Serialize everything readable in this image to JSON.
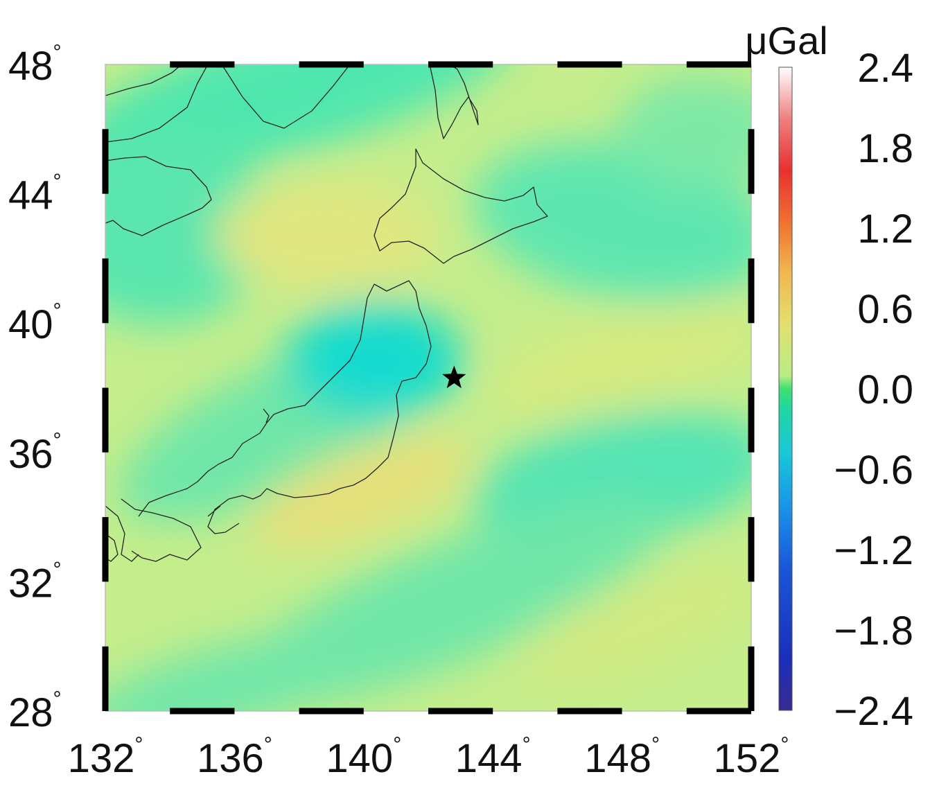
{
  "map": {
    "lon_range": [
      132,
      152
    ],
    "lat_range": [
      28,
      48
    ],
    "x_ticks": [
      {
        "value": 132,
        "label": "132"
      },
      {
        "value": 136,
        "label": "136"
      },
      {
        "value": 140,
        "label": "140"
      },
      {
        "value": 144,
        "label": "144"
      },
      {
        "value": 148,
        "label": "148"
      },
      {
        "value": 152,
        "label": "152"
      }
    ],
    "y_ticks": [
      {
        "value": 48,
        "label": "48"
      },
      {
        "value": 44,
        "label": "44"
      },
      {
        "value": 40,
        "label": "40"
      },
      {
        "value": 36,
        "label": "36"
      },
      {
        "value": 32,
        "label": "32"
      },
      {
        "value": 28,
        "label": "28"
      }
    ],
    "degree_symbol": "°",
    "epicenter": {
      "lon": 142.8,
      "lat": 38.3,
      "symbol": "star"
    },
    "frame_style": "alternating black/white dashed border"
  },
  "colorbar": {
    "unit": "μGal",
    "ticks": [
      "2.4",
      "1.8",
      "1.2",
      "0.6",
      "0.0",
      "−0.6",
      "−1.2",
      "−1.8",
      "−2.4"
    ],
    "range": [
      -2.4,
      2.4
    ],
    "colors": [
      "#2a2aa0",
      "#1a3fd0",
      "#2a8be0",
      "#18d0d8",
      "#2ee38a",
      "#cff07a",
      "#f0d060",
      "#f07a30",
      "#e83030",
      "#f2a0a0",
      "#ffffff"
    ]
  }
}
